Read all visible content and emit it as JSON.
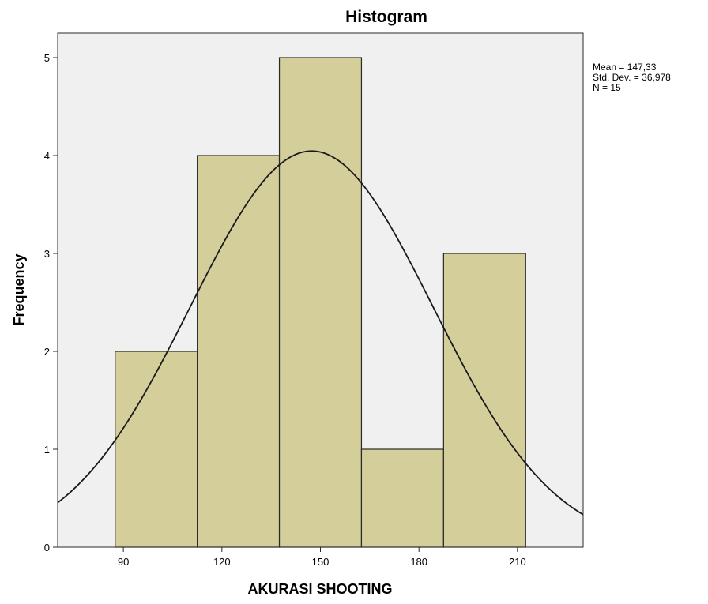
{
  "chart_data": {
    "type": "bar",
    "title": "Histogram",
    "xlabel": "AKURASI SHOOTING",
    "ylabel": "Frequency",
    "xlim": [
      70,
      230
    ],
    "ylim": [
      0,
      5.25
    ],
    "x_ticks": [
      90,
      120,
      150,
      180,
      210
    ],
    "y_ticks": [
      0,
      1,
      2,
      3,
      4,
      5
    ],
    "bins": [
      {
        "start": 87.5,
        "end": 112.5,
        "count": 2
      },
      {
        "start": 112.5,
        "end": 137.5,
        "count": 4
      },
      {
        "start": 137.5,
        "end": 162.5,
        "count": 5
      },
      {
        "start": 162.5,
        "end": 187.5,
        "count": 1
      },
      {
        "start": 187.5,
        "end": 212.5,
        "count": 3
      }
    ],
    "normal_curve": {
      "mean": 147.33,
      "sd": 36.978,
      "n": 15,
      "bin_width": 25
    },
    "stats": [
      "Mean = 147,33",
      "Std. Dev. = 36,978",
      "N = 15"
    ],
    "colors": {
      "bar_fill": "#d3ce9a",
      "plot_bg": "#f0f0f0",
      "stroke": "#2a2a2a"
    }
  }
}
